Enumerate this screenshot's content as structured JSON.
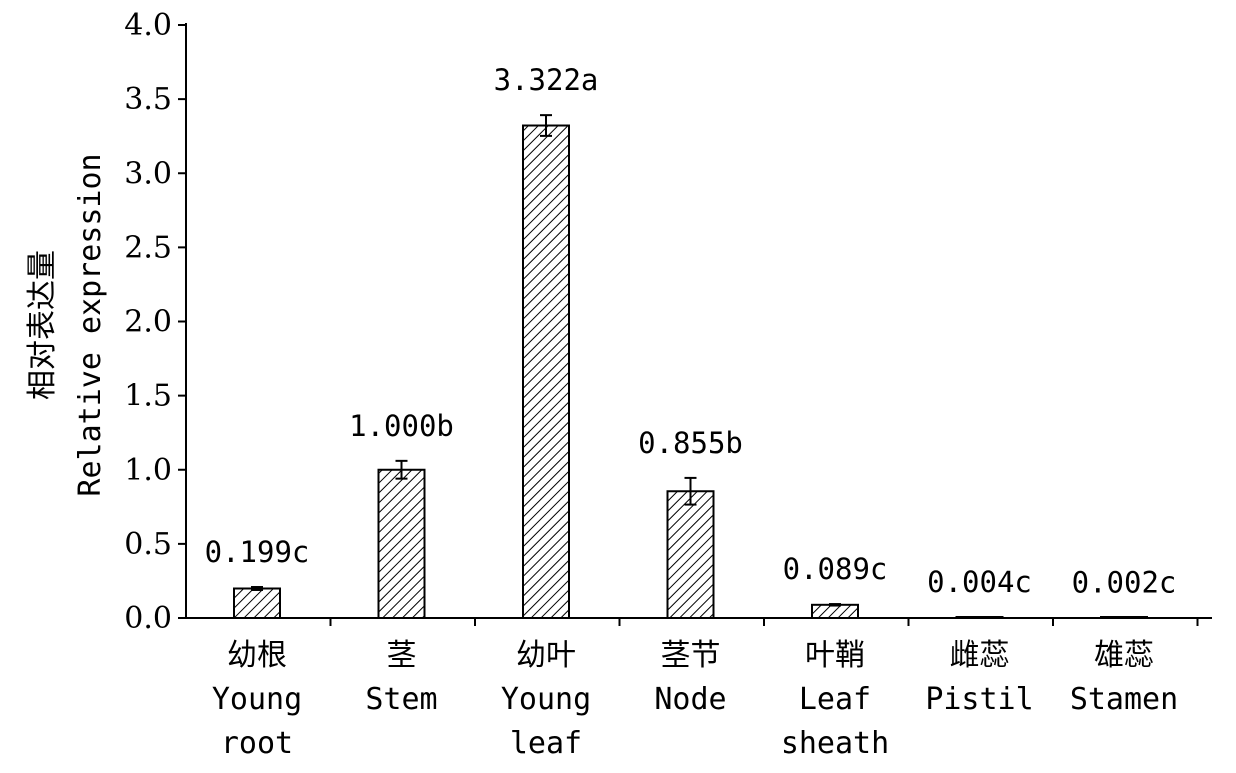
{
  "chart_data": {
    "type": "bar",
    "categories": [
      [
        "幼根",
        "Young",
        "root"
      ],
      [
        "茎",
        "Stem"
      ],
      [
        "幼叶",
        "Young",
        "leaf"
      ],
      [
        "茎节",
        "Node"
      ],
      [
        "叶鞘",
        "Leaf",
        "sheath"
      ],
      [
        "雌蕊",
        "Pistil"
      ],
      [
        "雄蕊",
        "Stamen"
      ]
    ],
    "values": [
      0.199,
      1.0,
      3.322,
      0.855,
      0.089,
      0.004,
      0.002
    ],
    "errors": [
      0.01,
      0.06,
      0.07,
      0.09,
      0.005,
      0.002,
      0.001
    ],
    "data_labels": [
      "0.199c",
      "1.000b",
      "3.322a",
      "0.855b",
      "0.089c",
      "0.004c",
      "0.002c"
    ],
    "ylabel": [
      "相对表达量",
      "Relative expression"
    ],
    "xlabel": "",
    "ylim": [
      0,
      4.0
    ],
    "yticks": [
      "0.0",
      "0.5",
      "1.0",
      "1.5",
      "2.0",
      "2.5",
      "3.0",
      "3.5",
      "4.0"
    ],
    "bar_fill": "diagonal-hatch",
    "bar_color": "#000000",
    "grid": false,
    "legend": "none"
  }
}
